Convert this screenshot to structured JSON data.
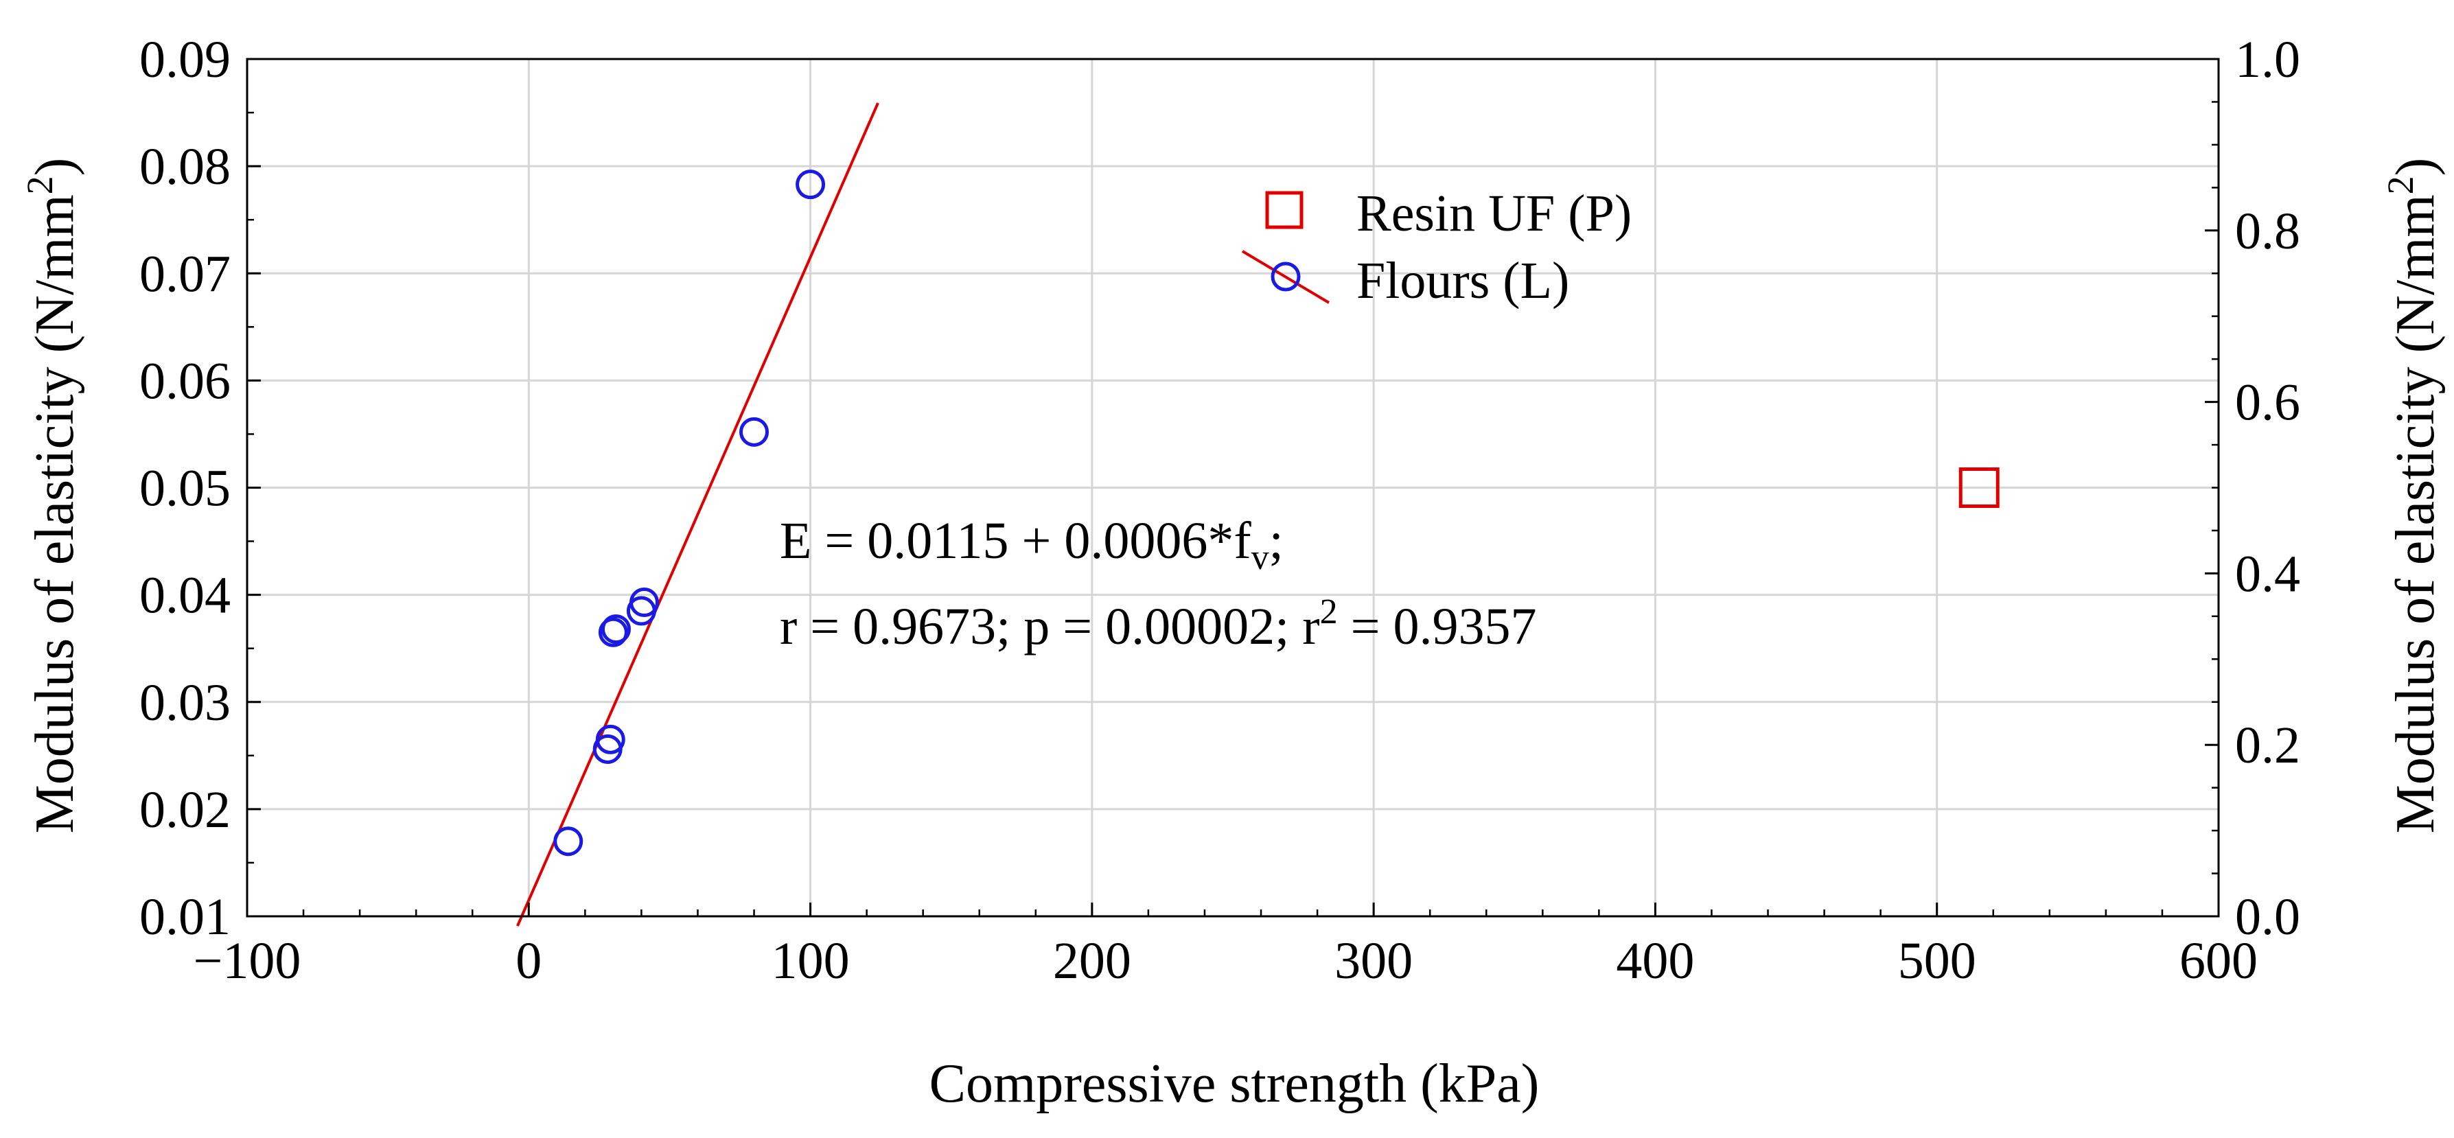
{
  "chart_data": {
    "type": "scatter",
    "xlabel": "Compressive strength (kPa)",
    "ylabel": "Modulus of elasticity (N/mm",
    "ylabel_sup": "2",
    "ylabel_close": ")",
    "y2label": "Modulus of elasticity (N/mm",
    "y2label_sup": "2",
    "y2label_close": ")",
    "xlim": [
      -100,
      600
    ],
    "ylim": [
      0.01,
      0.09
    ],
    "y2lim": [
      0.0,
      1.0
    ],
    "grid": true,
    "x_ticks": [
      "−100",
      "0",
      "100",
      "200",
      "300",
      "400",
      "500",
      "600"
    ],
    "x_tick_values": [
      -100,
      0,
      100,
      200,
      300,
      400,
      500,
      600
    ],
    "y_ticks": [
      "0.01",
      "0.02",
      "0.03",
      "0.04",
      "0.05",
      "0.06",
      "0.07",
      "0.08",
      "0.09"
    ],
    "y_tick_values": [
      0.01,
      0.02,
      0.03,
      0.04,
      0.05,
      0.06,
      0.07,
      0.08,
      0.09
    ],
    "y2_ticks": [
      "0.0",
      "0.2",
      "0.4",
      "0.6",
      "0.8",
      "1.0"
    ],
    "y2_tick_values": [
      0.0,
      0.2,
      0.4,
      0.6,
      0.8,
      1.0
    ],
    "legend_position": "top-center",
    "series": [
      {
        "name": "Resin UF (P)",
        "axis": "right",
        "marker": "square",
        "color": "#e00000",
        "points": [
          {
            "x": 515,
            "y": 0.5
          }
        ]
      },
      {
        "name": "Flours (L)",
        "axis": "left",
        "marker": "circle",
        "color": "#1a1ae6",
        "points": [
          {
            "x": 14,
            "y": 0.017
          },
          {
            "x": 28,
            "y": 0.0256
          },
          {
            "x": 29,
            "y": 0.0265
          },
          {
            "x": 30,
            "y": 0.0365
          },
          {
            "x": 31,
            "y": 0.0368
          },
          {
            "x": 40,
            "y": 0.0385
          },
          {
            "x": 41,
            "y": 0.0393
          },
          {
            "x": 80,
            "y": 0.0552
          },
          {
            "x": 100,
            "y": 0.0783
          }
        ],
        "fit": {
          "color": "#e00000",
          "intercept": 0.0115,
          "slope": 0.0006,
          "x_range": [
            -4,
            124
          ]
        }
      }
    ],
    "annotation": {
      "eq_main": "E = 0.0115 + 0.0006*f",
      "eq_sub": "v",
      "eq_end": ";",
      "stats_a": "r = 0.9673; p = 0.00002; r",
      "stats_sup": "2",
      "stats_b": " = 0.9357"
    }
  }
}
